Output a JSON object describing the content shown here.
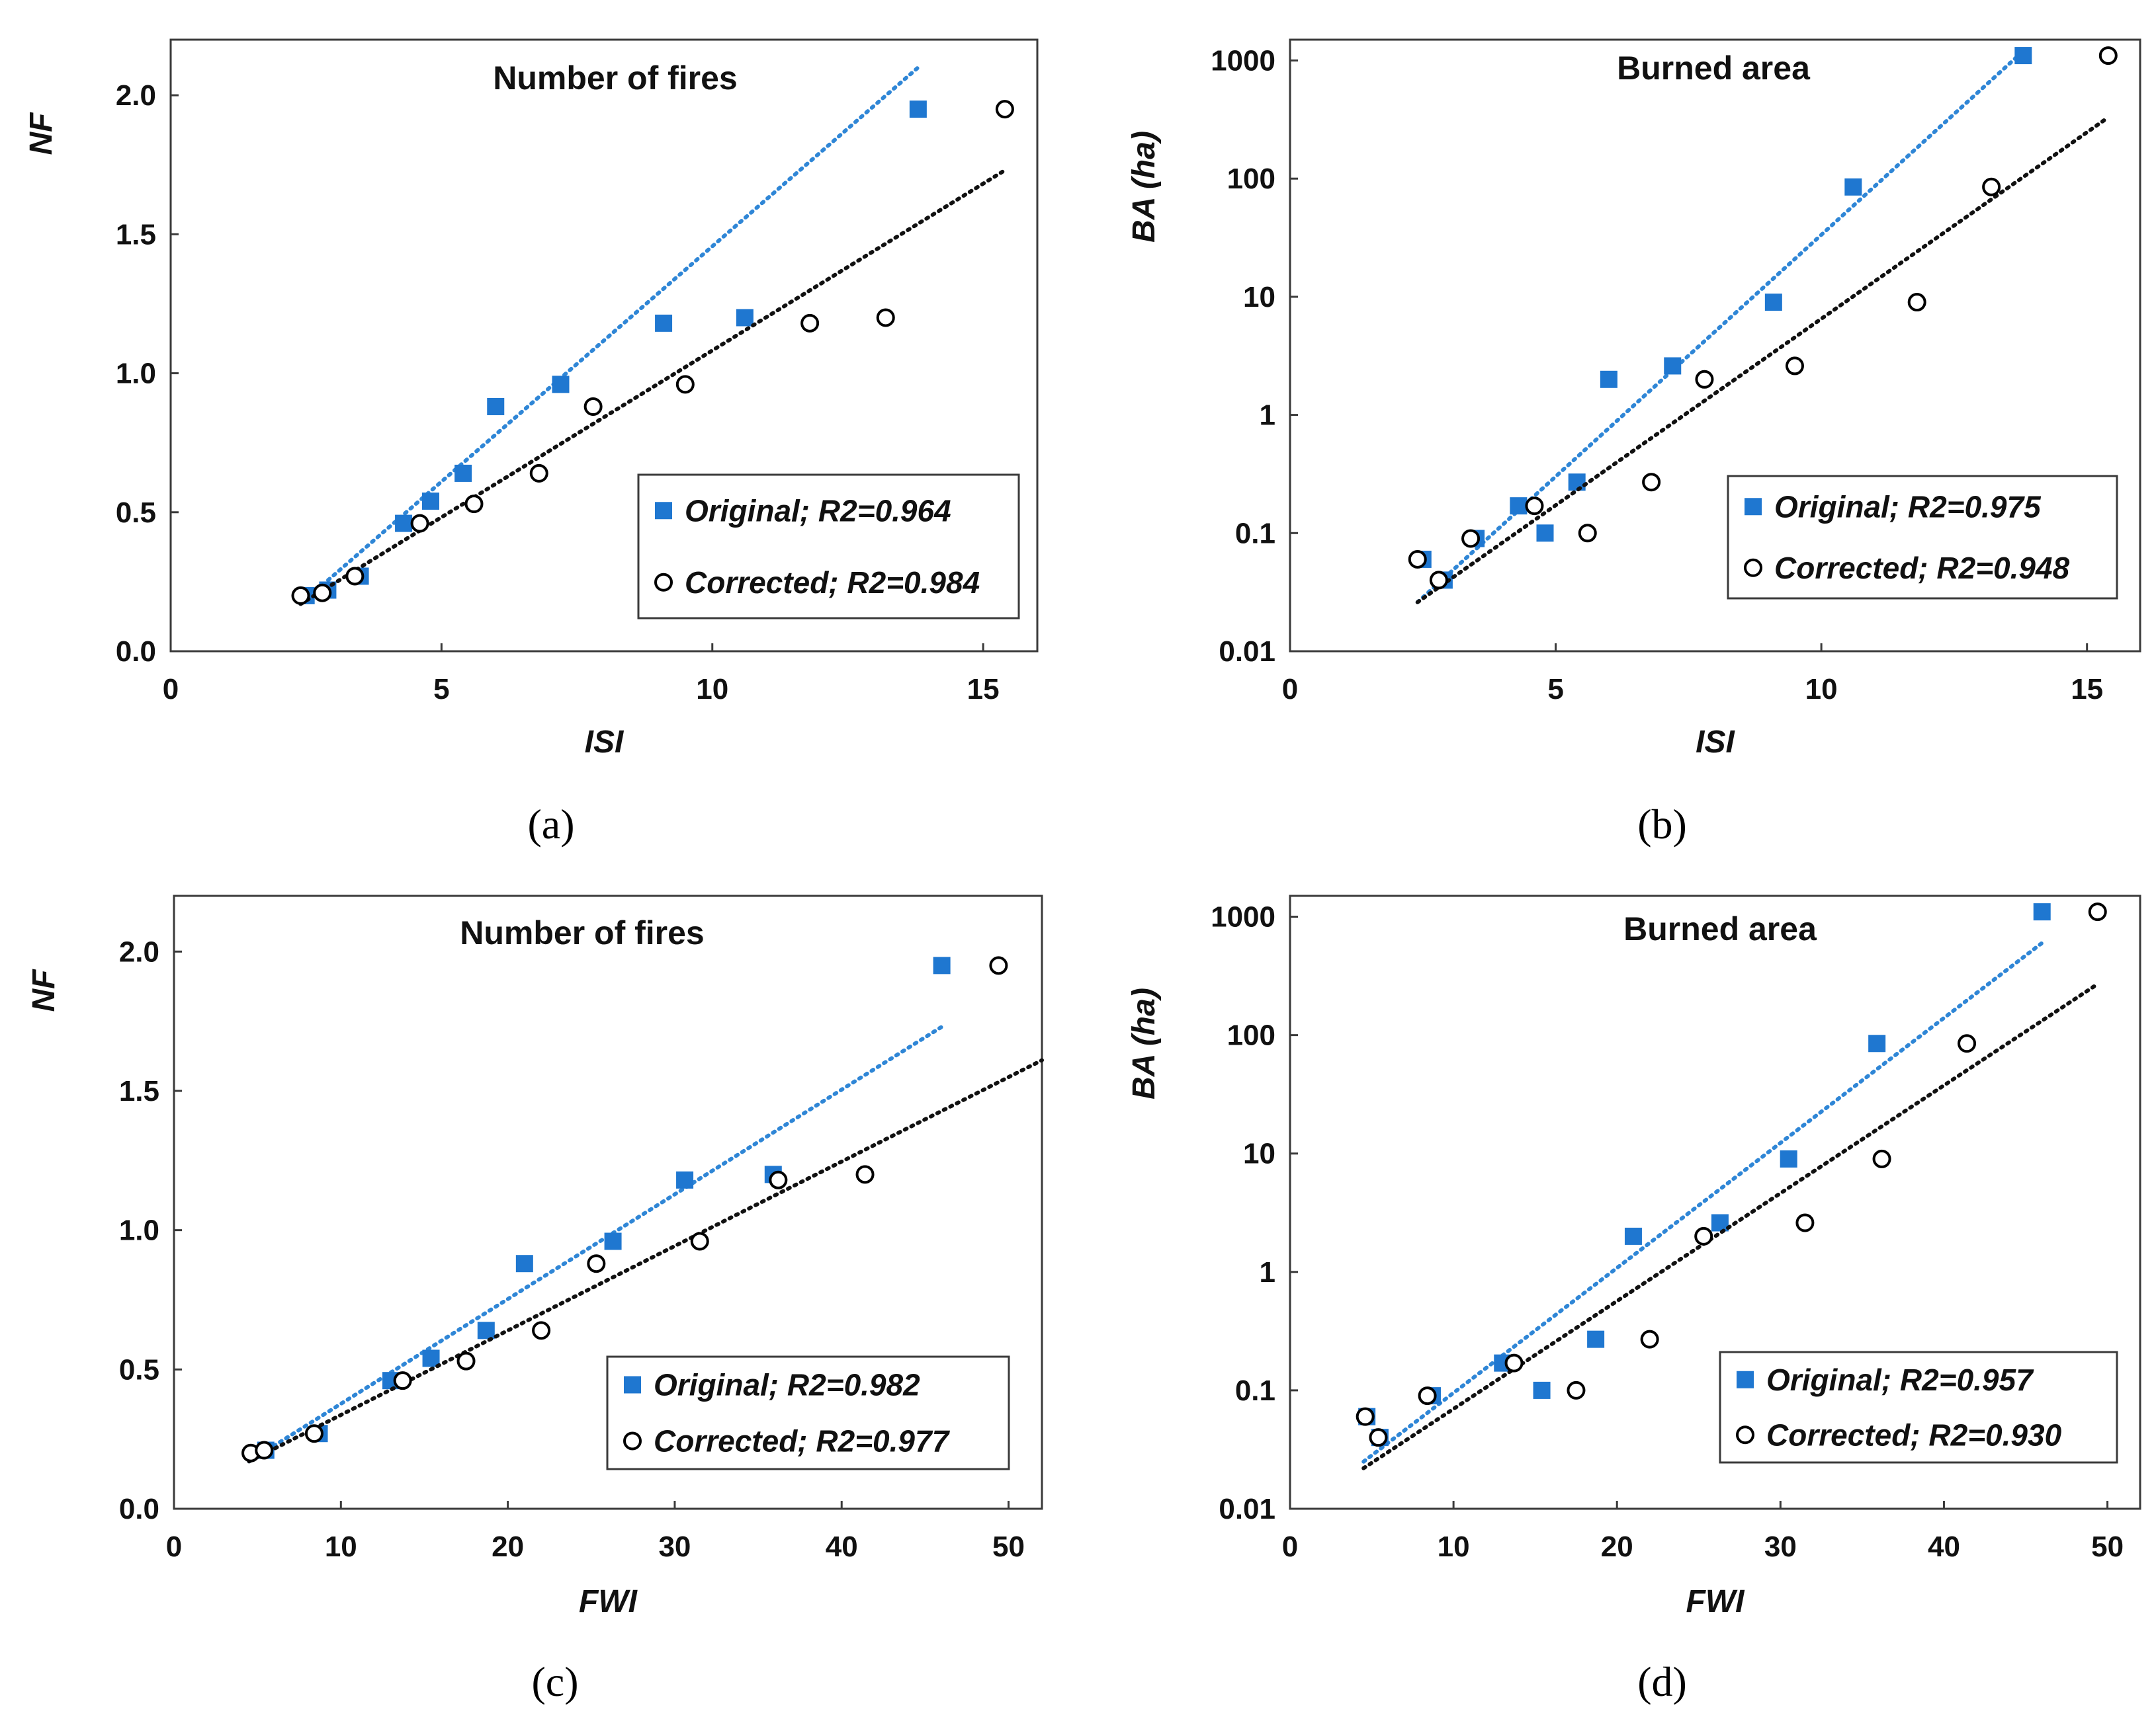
{
  "chart_data": [
    {
      "type": "scatter",
      "panel_label": "(a)",
      "title": "Number of fires",
      "xlabel": "ISI",
      "ylabel": "NF",
      "xlim": [
        0,
        16
      ],
      "ylim": [
        0,
        2.2
      ],
      "yscale": "linear",
      "xticks": [
        "0",
        "5",
        "10",
        "15"
      ],
      "xtick_values": [
        0,
        5,
        10,
        15
      ],
      "yticks": [
        "0.0",
        "0.5",
        "1.0",
        "1.5",
        "2.0"
      ],
      "ytick_values": [
        0,
        0.5,
        1.0,
        1.5,
        2.0
      ],
      "legend_position": "bottom-right",
      "series": [
        {
          "name": "Original; R2=0.964",
          "marker": "filled-square",
          "color": "#1f77d0",
          "x": [
            2.5,
            2.9,
            3.5,
            4.3,
            4.8,
            5.4,
            6.0,
            7.2,
            9.1,
            10.6,
            13.8
          ],
          "y": [
            0.2,
            0.22,
            0.27,
            0.46,
            0.54,
            0.64,
            0.88,
            0.96,
            1.18,
            1.2,
            1.95
          ],
          "trend": {
            "x": [
              2.4,
              13.8
            ],
            "y": [
              0.17,
              2.1
            ]
          }
        },
        {
          "name": "Corrected; R2=0.984",
          "marker": "open-circle",
          "color": "#000000",
          "x": [
            2.4,
            2.8,
            3.4,
            4.6,
            5.6,
            6.8,
            7.8,
            9.5,
            11.8,
            13.2,
            15.4
          ],
          "y": [
            0.2,
            0.21,
            0.27,
            0.46,
            0.53,
            0.64,
            0.88,
            0.96,
            1.18,
            1.2,
            1.95
          ],
          "trend": {
            "x": [
              2.4,
              15.4
            ],
            "y": [
              0.17,
              1.73
            ]
          }
        }
      ]
    },
    {
      "type": "scatter",
      "panel_label": "(b)",
      "title": "Burned area",
      "xlabel": "ISI",
      "ylabel": "BA (ha)",
      "xlim": [
        0,
        16
      ],
      "ylim": [
        0.01,
        1500
      ],
      "yscale": "log",
      "xticks": [
        "0",
        "5",
        "10",
        "15"
      ],
      "xtick_values": [
        0,
        5,
        10,
        15
      ],
      "yticks": [
        "0.01",
        "0.1",
        "1",
        "10",
        "100",
        "1000"
      ],
      "ytick_values": [
        0.01,
        0.1,
        1,
        10,
        100,
        1000
      ],
      "legend_position": "bottom-right",
      "series": [
        {
          "name": "Original; R2=0.975",
          "marker": "filled-square",
          "color": "#1f77d0",
          "x": [
            2.5,
            2.9,
            3.5,
            4.3,
            4.8,
            5.4,
            6.0,
            7.2,
            9.1,
            10.6,
            13.8
          ],
          "y": [
            0.06,
            0.04,
            0.09,
            0.17,
            0.1,
            0.27,
            2.0,
            2.6,
            9.0,
            85,
            1100
          ],
          "trend": {
            "x": [
              2.4,
              13.8
            ],
            "y": [
              0.026,
              1200
            ]
          }
        },
        {
          "name": "Corrected; R2=0.948",
          "marker": "open-circle",
          "color": "#000000",
          "x": [
            2.4,
            2.8,
            3.4,
            4.6,
            5.6,
            6.8,
            7.8,
            9.5,
            11.8,
            13.2,
            15.4
          ],
          "y": [
            0.06,
            0.04,
            0.09,
            0.17,
            0.1,
            0.27,
            2.0,
            2.6,
            9.0,
            85,
            1100
          ],
          "trend": {
            "x": [
              2.4,
              15.4
            ],
            "y": [
              0.026,
              330
            ]
          }
        }
      ]
    },
    {
      "type": "scatter",
      "panel_label": "(c)",
      "title": "Number of fires",
      "xlabel": "FWI",
      "ylabel": "NF",
      "xlim": [
        0,
        52
      ],
      "ylim": [
        0,
        2.2
      ],
      "yscale": "linear",
      "xticks": [
        "0",
        "10",
        "20",
        "30",
        "40",
        "50"
      ],
      "xtick_values": [
        0,
        10,
        20,
        30,
        40,
        50
      ],
      "yticks": [
        "0.0",
        "0.5",
        "1.0",
        "1.5",
        "2.0"
      ],
      "ytick_values": [
        0,
        0.5,
        1.0,
        1.5,
        2.0
      ],
      "legend_position": "bottom-right",
      "series": [
        {
          "name": "Original; R2=0.982",
          "marker": "filled-square",
          "color": "#1f77d0",
          "x": [
            5.5,
            8.7,
            13.0,
            15.4,
            18.7,
            21.0,
            26.3,
            30.6,
            35.9,
            46.0
          ],
          "y": [
            0.21,
            0.27,
            0.46,
            0.54,
            0.64,
            0.88,
            0.96,
            1.18,
            1.2,
            1.95
          ],
          "trend": {
            "x": [
              4.5,
              46.0
            ],
            "y": [
              0.17,
              1.73
            ]
          }
        },
        {
          "name": "Corrected; R2=0.977",
          "marker": "open-circle",
          "color": "#000000",
          "x": [
            4.6,
            5.4,
            8.4,
            13.7,
            17.5,
            22.0,
            25.3,
            31.5,
            36.2,
            41.4,
            49.4
          ],
          "y": [
            0.2,
            0.21,
            0.27,
            0.46,
            0.53,
            0.64,
            0.88,
            0.96,
            1.18,
            1.2,
            1.95
          ],
          "trend": {
            "x": [
              4.5,
              52.0
            ],
            "y": [
              0.17,
              1.61
            ]
          }
        }
      ]
    },
    {
      "type": "scatter",
      "panel_label": "(d)",
      "title": "Burned area",
      "xlabel": "FWI",
      "ylabel": "BA (ha)",
      "xlim": [
        0,
        52
      ],
      "ylim": [
        0.01,
        1500
      ],
      "yscale": "log",
      "xticks": [
        "0",
        "10",
        "20",
        "30",
        "40",
        "50"
      ],
      "xtick_values": [
        0,
        10,
        20,
        30,
        40,
        50
      ],
      "yticks": [
        "0.01",
        "0.1",
        "1",
        "10",
        "100",
        "1000"
      ],
      "ytick_values": [
        0.01,
        0.1,
        1,
        10,
        100,
        1000
      ],
      "legend_position": "bottom-right",
      "series": [
        {
          "name": "Original; R2=0.957",
          "marker": "filled-square",
          "color": "#1f77d0",
          "x": [
            4.7,
            5.5,
            8.7,
            13.0,
            15.4,
            18.7,
            21.0,
            26.3,
            30.5,
            35.9,
            46.0
          ],
          "y": [
            0.06,
            0.04,
            0.09,
            0.17,
            0.1,
            0.27,
            2.0,
            2.6,
            9.0,
            85,
            1100
          ],
          "trend": {
            "x": [
              4.5,
              46.0
            ],
            "y": [
              0.025,
              600
            ]
          }
        },
        {
          "name": "Corrected; R2=0.930",
          "marker": "open-circle",
          "color": "#000000",
          "x": [
            4.6,
            5.4,
            8.4,
            13.7,
            17.5,
            22.0,
            25.3,
            31.5,
            36.2,
            41.4,
            49.4
          ],
          "y": [
            0.06,
            0.04,
            0.09,
            0.17,
            0.1,
            0.27,
            2.0,
            2.6,
            9.0,
            85,
            1100
          ],
          "trend": {
            "x": [
              4.5,
              49.4
            ],
            "y": [
              0.022,
              270
            ]
          }
        }
      ]
    }
  ]
}
